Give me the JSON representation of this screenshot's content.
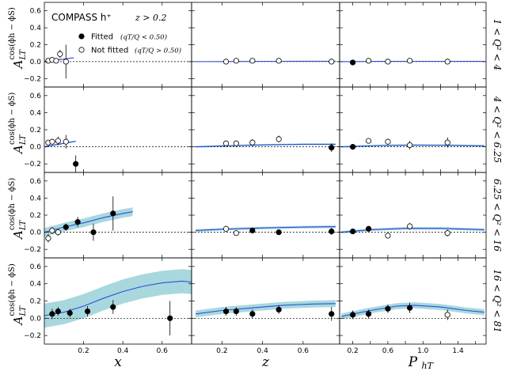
{
  "chart_data": {
    "type": "scatter",
    "title": "COMPASS h⁺",
    "cut_label": "z > 0.2",
    "ylabel_main": "A",
    "ylabel_sub": "LT",
    "ylabel_sup": "cos(ϕh − ϕS)",
    "legend": {
      "placement": "top-left",
      "entries": [
        {
          "label": "Fitted",
          "condition": "(qT/Q < 0.50)",
          "marker": "filled"
        },
        {
          "label": "Not fitted",
          "condition": "(qT/Q > 0.50)",
          "marker": "open"
        }
      ]
    },
    "ylim": [
      -0.3,
      0.7
    ],
    "yticks": [
      -0.2,
      0.0,
      0.2,
      0.4,
      0.6
    ],
    "ytick_labels": [
      "−0.2",
      "0.0",
      "0.2",
      "0.4",
      "0.6"
    ],
    "columns": [
      {
        "xlabel": "x",
        "xlim": [
          0.0,
          0.75
        ],
        "xticks": [
          0.2,
          0.4,
          0.6
        ],
        "xtick_labels": [
          "0.2",
          "0.4",
          "0.6"
        ]
      },
      {
        "xlabel": "z",
        "xlim": [
          0.05,
          0.78
        ],
        "xticks": [
          0.2,
          0.4,
          0.6
        ],
        "xtick_labels": [
          "0.2",
          "0.4",
          "0.6"
        ]
      },
      {
        "xlabel": "P",
        "xlabel_sub": "hT",
        "xlim": [
          0.05,
          1.72
        ],
        "xticks": [
          0.2,
          0.4,
          0.6,
          0.8,
          1.0,
          1.2,
          1.4,
          1.6
        ],
        "xtick_labels": [
          "0.2",
          "",
          "0.6",
          "",
          "1.0",
          "",
          "1.4",
          ""
        ]
      }
    ],
    "rows": [
      {
        "label": "1 < Q² < 4",
        "panels": [
          {
            "points": [
              [
                0.02,
                0.01,
                0.015,
                0
              ],
              [
                0.04,
                0.02,
                0.015,
                0
              ],
              [
                0.06,
                0.01,
                0.015,
                0
              ],
              [
                0.08,
                0.09,
                0.05,
                0
              ],
              [
                0.11,
                0.0,
                0.2,
                0
              ]
            ],
            "curve": [
              [
                0.0,
                0.0
              ],
              [
                0.05,
                0.015
              ],
              [
                0.1,
                0.03
              ],
              [
                0.15,
                0.045
              ]
            ],
            "band": 0.004
          },
          {
            "points": [
              [
                0.22,
                0.0,
                0.01,
                0
              ],
              [
                0.27,
                0.01,
                0.01,
                0
              ],
              [
                0.35,
                0.01,
                0.01,
                0
              ],
              [
                0.48,
                0.01,
                0.01,
                0
              ],
              [
                0.74,
                0.0,
                0.01,
                0
              ]
            ],
            "curve": [
              [
                0.07,
                0.0
              ],
              [
                0.3,
                0.002
              ],
              [
                0.5,
                0.004
              ],
              [
                0.76,
                0.005
              ]
            ],
            "band": 0.003
          },
          {
            "points": [
              [
                0.2,
                -0.01,
                0.01,
                1
              ],
              [
                0.38,
                0.01,
                0.01,
                0
              ],
              [
                0.6,
                0.0,
                0.01,
                0
              ],
              [
                0.85,
                0.01,
                0.01,
                0
              ],
              [
                1.28,
                0.0,
                0.01,
                0
              ]
            ],
            "curve": [
              [
                0.07,
                0.0
              ],
              [
                0.5,
                0.003
              ],
              [
                1.0,
                0.004
              ],
              [
                1.7,
                0.003
              ]
            ],
            "band": 0.003
          }
        ]
      },
      {
        "label": "4 < Q² < 6.25",
        "panels": [
          {
            "points": [
              [
                0.02,
                0.05,
                0.03,
                0
              ],
              [
                0.04,
                0.06,
                0.03,
                0
              ],
              [
                0.07,
                0.07,
                0.05,
                0
              ],
              [
                0.11,
                0.06,
                0.08,
                0
              ],
              [
                0.16,
                -0.2,
                0.1,
                1
              ]
            ],
            "curve": [
              [
                0.0,
                0.0
              ],
              [
                0.06,
                0.025
              ],
              [
                0.11,
                0.045
              ],
              [
                0.16,
                0.065
              ]
            ],
            "band": 0.008
          },
          {
            "points": [
              [
                0.22,
                0.04,
                0.03,
                0
              ],
              [
                0.27,
                0.04,
                0.03,
                0
              ],
              [
                0.35,
                0.05,
                0.04,
                0
              ],
              [
                0.48,
                0.09,
                0.04,
                0
              ],
              [
                0.74,
                -0.01,
                0.05,
                1
              ]
            ],
            "curve": [
              [
                0.07,
                0.0
              ],
              [
                0.2,
                0.01
              ],
              [
                0.4,
                0.022
              ],
              [
                0.6,
                0.03
              ],
              [
                0.76,
                0.03
              ]
            ],
            "band": 0.01
          },
          {
            "points": [
              [
                0.2,
                0.0,
                0.03,
                1
              ],
              [
                0.38,
                0.07,
                0.03,
                0
              ],
              [
                0.6,
                0.06,
                0.03,
                0
              ],
              [
                0.85,
                0.02,
                0.05,
                0
              ],
              [
                1.28,
                0.05,
                0.06,
                0
              ]
            ],
            "curve": [
              [
                0.07,
                0.0
              ],
              [
                0.5,
                0.015
              ],
              [
                0.9,
                0.02
              ],
              [
                1.3,
                0.018
              ],
              [
                1.7,
                0.012
              ]
            ],
            "band": 0.01
          }
        ]
      },
      {
        "label": "6.25 < Q² < 16",
        "panels": [
          {
            "points": [
              [
                0.02,
                -0.07,
                0.05,
                0
              ],
              [
                0.04,
                0.02,
                0.04,
                0
              ],
              [
                0.07,
                0.0,
                0.04,
                0
              ],
              [
                0.11,
                0.06,
                0.04,
                1
              ],
              [
                0.17,
                0.12,
                0.06,
                1
              ],
              [
                0.25,
                0.0,
                0.1,
                1
              ],
              [
                0.35,
                0.22,
                0.2,
                1
              ]
            ],
            "curve": [
              [
                0.0,
                0.0
              ],
              [
                0.1,
                0.06
              ],
              [
                0.2,
                0.11
              ],
              [
                0.3,
                0.17
              ],
              [
                0.4,
                0.22
              ],
              [
                0.45,
                0.24
              ]
            ],
            "band": 0.05
          },
          {
            "points": [
              [
                0.22,
                0.04,
                0.02,
                0
              ],
              [
                0.27,
                -0.01,
                0.02,
                0
              ],
              [
                0.35,
                0.02,
                0.02,
                1
              ],
              [
                0.48,
                0.0,
                0.02,
                1
              ],
              [
                0.74,
                0.01,
                0.04,
                1
              ]
            ],
            "curve": [
              [
                0.07,
                0.02
              ],
              [
                0.2,
                0.035
              ],
              [
                0.4,
                0.05
              ],
              [
                0.6,
                0.06
              ],
              [
                0.76,
                0.065
              ]
            ],
            "band": 0.015
          },
          {
            "points": [
              [
                0.2,
                0.01,
                0.02,
                1
              ],
              [
                0.38,
                0.04,
                0.02,
                1
              ],
              [
                0.6,
                -0.04,
                0.03,
                0
              ],
              [
                0.85,
                0.07,
                0.04,
                0
              ],
              [
                1.28,
                -0.01,
                0.04,
                0
              ]
            ],
            "curve": [
              [
                0.07,
                0.0
              ],
              [
                0.4,
                0.03
              ],
              [
                0.8,
                0.045
              ],
              [
                1.2,
                0.045
              ],
              [
                1.7,
                0.03
              ]
            ],
            "band": 0.015
          }
        ]
      },
      {
        "label": "16 < Q² < 81",
        "panels": [
          {
            "points": [
              [
                0.04,
                0.05,
                0.06,
                1
              ],
              [
                0.07,
                0.08,
                0.05,
                1
              ],
              [
                0.13,
                0.06,
                0.05,
                1
              ],
              [
                0.22,
                0.08,
                0.06,
                1
              ],
              [
                0.35,
                0.13,
                0.08,
                1
              ],
              [
                0.64,
                0.0,
                0.2,
                1
              ]
            ],
            "curve": [
              [
                0.0,
                0.03
              ],
              [
                0.1,
                0.07
              ],
              [
                0.2,
                0.14
              ],
              [
                0.3,
                0.23
              ],
              [
                0.4,
                0.31
              ],
              [
                0.5,
                0.37
              ],
              [
                0.6,
                0.41
              ],
              [
                0.7,
                0.43
              ],
              [
                0.75,
                0.42
              ]
            ],
            "band": 0.14
          },
          {
            "points": [
              [
                0.22,
                0.08,
                0.05,
                1
              ],
              [
                0.27,
                0.08,
                0.05,
                1
              ],
              [
                0.35,
                0.05,
                0.05,
                1
              ],
              [
                0.48,
                0.1,
                0.05,
                1
              ],
              [
                0.74,
                0.05,
                0.08,
                1
              ]
            ],
            "curve": [
              [
                0.07,
                0.05
              ],
              [
                0.2,
                0.09
              ],
              [
                0.35,
                0.12
              ],
              [
                0.5,
                0.15
              ],
              [
                0.65,
                0.165
              ],
              [
                0.76,
                0.17
              ]
            ],
            "band": 0.04
          },
          {
            "points": [
              [
                0.2,
                0.04,
                0.05,
                1
              ],
              [
                0.38,
                0.05,
                0.05,
                1
              ],
              [
                0.6,
                0.11,
                0.05,
                1
              ],
              [
                0.85,
                0.12,
                0.06,
                1
              ],
              [
                1.28,
                0.04,
                0.06,
                0
              ]
            ],
            "curve": [
              [
                0.07,
                0.02
              ],
              [
                0.4,
                0.09
              ],
              [
                0.7,
                0.14
              ],
              [
                0.9,
                0.15
              ],
              [
                1.2,
                0.13
              ],
              [
                1.5,
                0.09
              ],
              [
                1.7,
                0.07
              ]
            ],
            "band": 0.035
          }
        ]
      }
    ]
  }
}
